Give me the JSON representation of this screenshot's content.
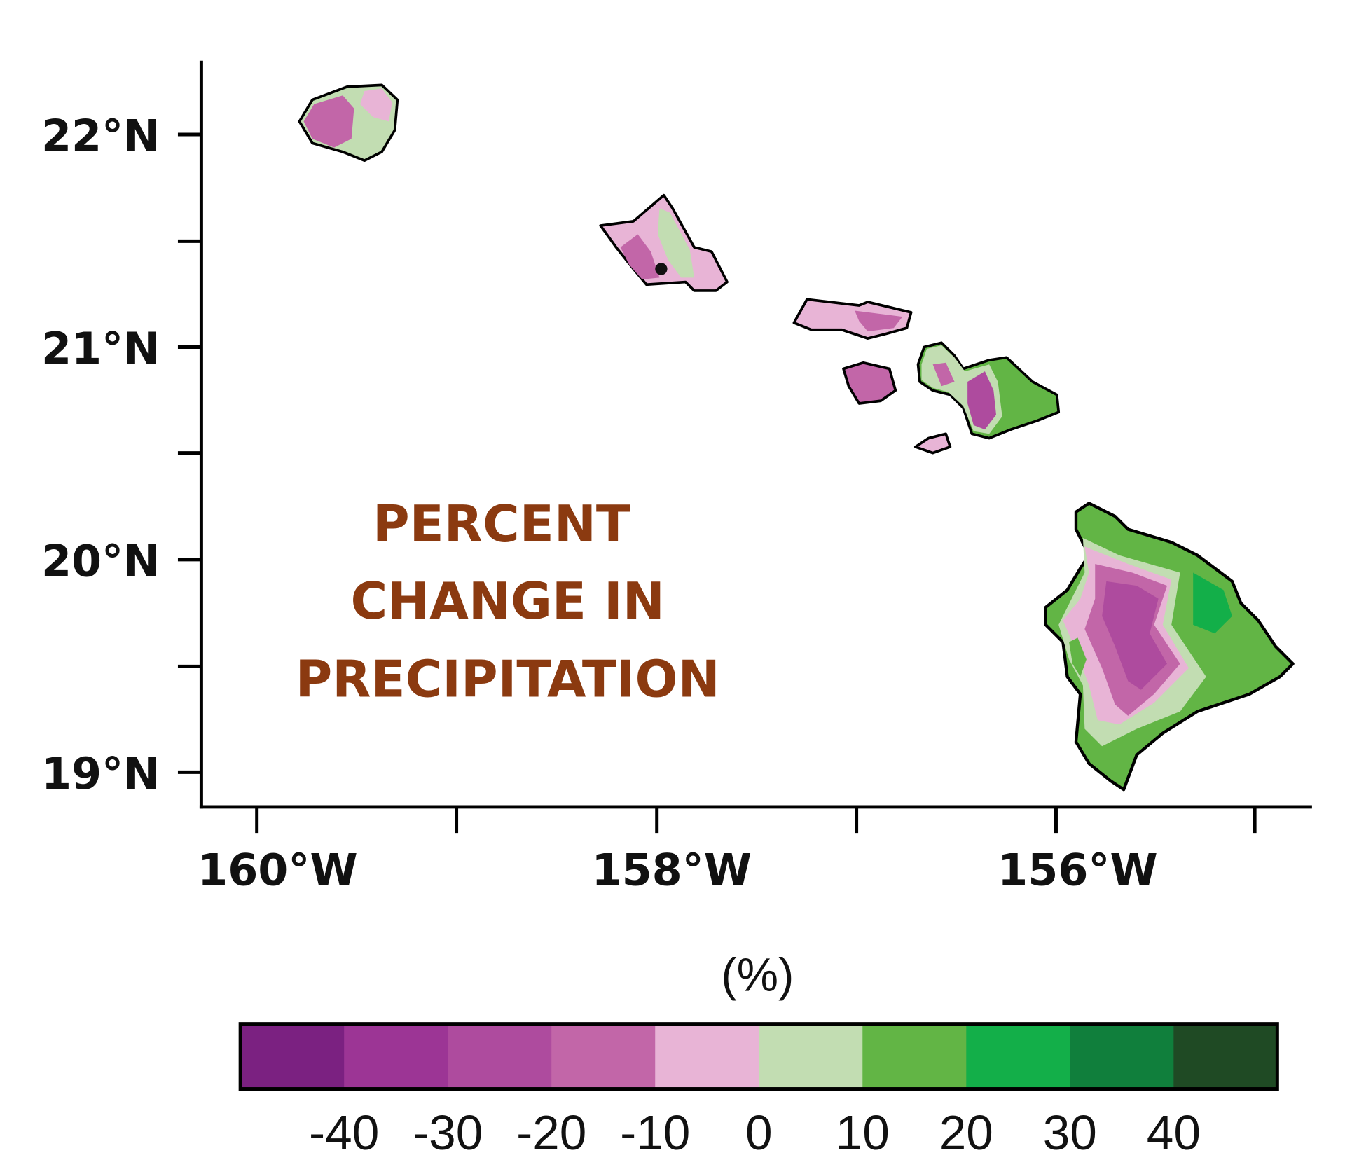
{
  "map": {
    "title_lines": [
      "PERCENT",
      "CHANGE IN",
      "PRECIPITATION"
    ],
    "title_color": "#8B3A10",
    "lat_labels": [
      "22°N",
      "21°N",
      "20°N",
      "19°N"
    ],
    "lon_labels": [
      "160°W",
      "158°W",
      "156°W"
    ],
    "region": "Hawaiian Islands"
  },
  "colorbar": {
    "unit_label": "(%)",
    "tick_labels": [
      "-40",
      "-30",
      "-20",
      "-10",
      "0",
      "10",
      "20",
      "30",
      "40"
    ],
    "colors": [
      "#7B2181",
      "#9C3595",
      "#AE4B9E",
      "#C266A8",
      "#E8B4D6",
      "#C2DDB2",
      "#62B545",
      "#13AF49",
      "#107F3C",
      "#1F4A24"
    ]
  }
}
